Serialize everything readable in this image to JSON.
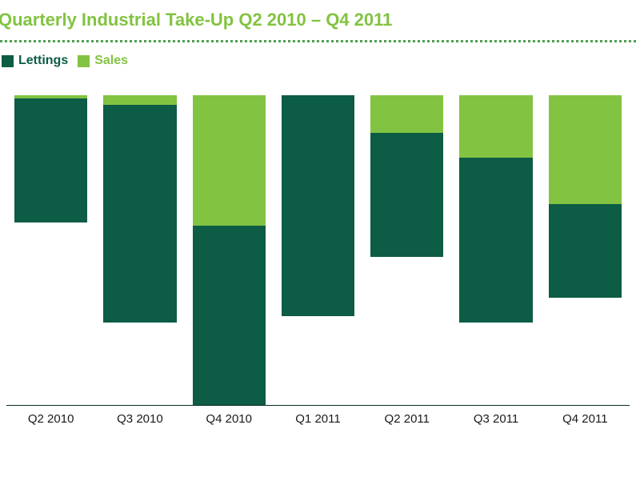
{
  "chart": {
    "type": "stacked-bar",
    "title": "Quarterly Industrial Take-Up Q2 2010 – Q4 2011",
    "title_color": "#82c341",
    "title_fontsize": 22,
    "divider_color": "#4da04d",
    "background_color": "#ffffff",
    "axis_color": "#0a2b22",
    "label_fontsize": 15,
    "legend_fontsize": 16,
    "series": [
      {
        "key": "lettings",
        "label": "Lettings",
        "color": "#0d5c45"
      },
      {
        "key": "sales",
        "label": "Sales",
        "color": "#82c341"
      }
    ],
    "y_max": 100,
    "bar_width_pct": 82,
    "categories": [
      {
        "label": "Q2 2010",
        "lettings": 40,
        "sales": 1
      },
      {
        "label": "Q3 2010",
        "lettings": 70,
        "sales": 3
      },
      {
        "label": "Q4 2010",
        "lettings": 58,
        "sales": 42
      },
      {
        "label": "Q1 2011",
        "lettings": 71,
        "sales": 0
      },
      {
        "label": "Q2 2011",
        "lettings": 40,
        "sales": 12
      },
      {
        "label": "Q3 2011",
        "lettings": 53,
        "sales": 20
      },
      {
        "label": "Q4 2011",
        "lettings": 30,
        "sales": 35
      }
    ]
  }
}
